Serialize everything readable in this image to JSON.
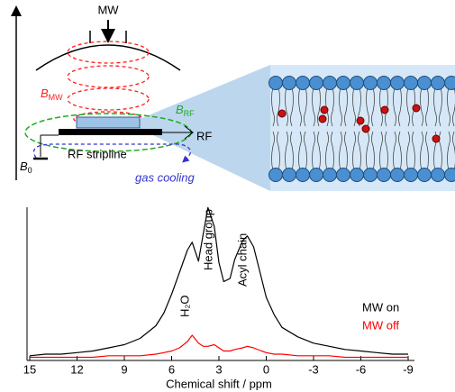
{
  "diagram": {
    "mw": "MW",
    "b_mw": {
      "symbol": "B",
      "subscript": "MW"
    },
    "b_rf": {
      "symbol": "B",
      "subscript": "RF"
    },
    "rf": "RF",
    "rf_stripline": "RF stripline",
    "gas_cooling": "gas cooling",
    "b0": {
      "symbol": "B",
      "subscript": "0"
    }
  },
  "chart_data": {
    "type": "line",
    "x_label": "Chemical shift / ppm",
    "x": [
      15,
      14,
      13,
      12,
      11,
      10,
      9,
      8,
      7,
      6.5,
      6,
      5.5,
      5,
      4.7,
      4.3,
      4,
      3.7,
      3.3,
      3,
      2.7,
      2.3,
      2,
      1.5,
      1.2,
      0.8,
      0.3,
      0,
      -0.5,
      -1,
      -2,
      -3,
      -4,
      -5,
      -6,
      -7,
      -8,
      -9
    ],
    "series": [
      {
        "name": "MW on",
        "color": "#000000",
        "values": [
          3,
          4,
          4,
          5,
          6,
          8,
          10,
          14,
          22,
          30,
          42,
          56,
          70,
          75,
          63,
          80,
          97,
          85,
          62,
          50,
          52,
          64,
          76,
          79,
          72,
          52,
          40,
          29,
          21,
          15,
          11,
          9,
          7,
          6,
          5,
          4,
          4
        ]
      },
      {
        "name": "MW off",
        "color": "#ff0000",
        "values": [
          2,
          2,
          2,
          2,
          2,
          3,
          3,
          3,
          4,
          5,
          6,
          8,
          12,
          16,
          11,
          9,
          9,
          10,
          8,
          6,
          6,
          7,
          8,
          9,
          8,
          6,
          5,
          4,
          4,
          3,
          3,
          3,
          2,
          2,
          2,
          2,
          2
        ]
      }
    ],
    "annotations": [
      "H₂O",
      "Head group",
      "Acyl chain"
    ],
    "xlim": [
      15,
      -9
    ],
    "xticks": [
      15,
      12,
      9,
      6,
      3,
      0,
      -3,
      -6,
      -9
    ],
    "ylim": [
      0,
      100
    ]
  }
}
